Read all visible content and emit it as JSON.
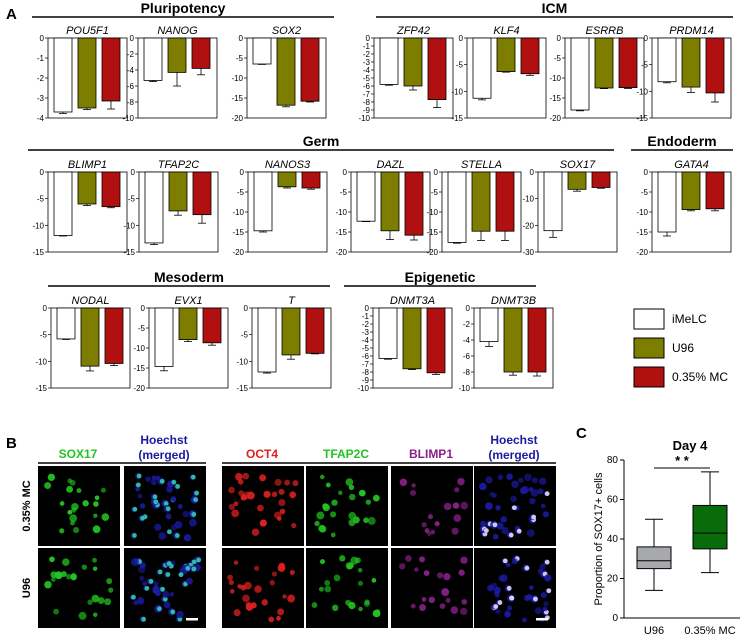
{
  "panels": {
    "a": "A",
    "b": "B",
    "c": "C"
  },
  "groups": [
    {
      "title": "Pluripotency"
    },
    {
      "title": "ICM"
    },
    {
      "title": "Germ"
    },
    {
      "title": "Endoderm"
    },
    {
      "title": "Mesoderm"
    },
    {
      "title": "Epigenetic"
    }
  ],
  "chart_data": [
    {
      "type": "bar",
      "title": "POU5F1",
      "categories": [
        "iMeLC",
        "U96",
        "0.35% MC"
      ],
      "values": [
        -3.7,
        -3.5,
        -3.15
      ],
      "errors": [
        0.07,
        0.08,
        0.4
      ],
      "ylim": [
        -4,
        0
      ],
      "yticks": [
        "0",
        "-1",
        "-2",
        "-3",
        "-4"
      ]
    },
    {
      "type": "bar",
      "title": "NANOG",
      "categories": [
        "iMeLC",
        "U96",
        "0.35% MC"
      ],
      "values": [
        -5.3,
        -4.3,
        -3.8
      ],
      "errors": [
        0.15,
        1.7,
        0.8
      ],
      "ylim": [
        -10,
        0
      ],
      "yticks": [
        "0",
        "-2",
        "-4",
        "-6",
        "-8",
        "-10"
      ]
    },
    {
      "type": "bar",
      "title": "SOX2",
      "categories": [
        "iMeLC",
        "U96",
        "0.35% MC"
      ],
      "values": [
        -6.5,
        -16.8,
        -15.8
      ],
      "errors": [
        0.1,
        0.4,
        0.2
      ],
      "ylim": [
        -20,
        0
      ],
      "yticks": [
        "0",
        "-5",
        "-10",
        "-15",
        "-20"
      ]
    },
    {
      "type": "bar",
      "title": "ZFP42",
      "categories": [
        "iMeLC",
        "U96",
        "0.35% MC"
      ],
      "values": [
        -5.8,
        -6.0,
        -7.7
      ],
      "errors": [
        0.1,
        0.5,
        1.0
      ],
      "ylim": [
        -10,
        0
      ],
      "yticks": [
        "0",
        "-1",
        "-2",
        "-3",
        "-4",
        "-5",
        "-6",
        "-7",
        "-8",
        "-9",
        "-10"
      ]
    },
    {
      "type": "bar",
      "title": "KLF4",
      "categories": [
        "iMeLC",
        "U96",
        "0.35% MC"
      ],
      "values": [
        -11.3,
        -6.3,
        -6.7
      ],
      "errors": [
        0.3,
        0.1,
        0.3
      ],
      "ylim": [
        -15,
        0
      ],
      "yticks": [
        "0",
        "-5",
        "-10",
        "-15"
      ]
    },
    {
      "type": "bar",
      "title": "ESRRB",
      "categories": [
        "iMeLC",
        "U96",
        "0.35% MC"
      ],
      "values": [
        -18.0,
        -12.5,
        -12.4
      ],
      "errors": [
        0.2,
        0.15,
        0.2
      ],
      "ylim": [
        -20,
        0
      ],
      "yticks": [
        "0",
        "-5",
        "-10",
        "-15",
        "-20"
      ]
    },
    {
      "type": "bar",
      "title": "PRDM14",
      "categories": [
        "iMeLC",
        "U96",
        "0.35% MC"
      ],
      "values": [
        -8.2,
        -9.2,
        -10.3
      ],
      "errors": [
        0.2,
        1.0,
        1.7
      ],
      "ylim": [
        -15,
        0
      ],
      "yticks": [
        "0",
        "-5",
        "-10",
        "-15"
      ]
    },
    {
      "type": "bar",
      "title": "BLIMP1",
      "categories": [
        "iMeLC",
        "U96",
        "0.35% MC"
      ],
      "values": [
        -11.9,
        -6.0,
        -6.5
      ],
      "errors": [
        0.1,
        0.3,
        0.2
      ],
      "ylim": [
        -15,
        0
      ],
      "yticks": [
        "0",
        "-5",
        "-10",
        "-15"
      ]
    },
    {
      "type": "bar",
      "title": "TFAP2C",
      "categories": [
        "iMeLC",
        "U96",
        "0.35% MC"
      ],
      "values": [
        -13.3,
        -7.3,
        -8.0
      ],
      "errors": [
        0.3,
        0.8,
        1.6
      ],
      "ylim": [
        -15,
        0
      ],
      "yticks": [
        "0",
        "-5",
        "-10",
        "-15"
      ]
    },
    {
      "type": "bar",
      "title": "NANOS3",
      "categories": [
        "iMeLC",
        "U96",
        "0.35% MC"
      ],
      "values": [
        -14.7,
        -3.7,
        -4.0
      ],
      "errors": [
        0.3,
        0.3,
        0.3
      ],
      "ylim": [
        -20,
        0
      ],
      "yticks": [
        "0",
        "-5",
        "-10",
        "-15",
        "-20"
      ]
    },
    {
      "type": "bar",
      "title": "DAZL",
      "categories": [
        "iMeLC",
        "U96",
        "0.35% MC"
      ],
      "values": [
        -12.3,
        -14.7,
        -15.8
      ],
      "errors": [
        0.1,
        2.2,
        1.2
      ],
      "ylim": [
        -20,
        0
      ],
      "yticks": [
        "0",
        "-5",
        "-10",
        "-15",
        "-20"
      ]
    },
    {
      "type": "bar",
      "title": "STELLA",
      "categories": [
        "iMeLC",
        "U96",
        "0.35% MC"
      ],
      "values": [
        -17.6,
        -14.8,
        -14.8
      ],
      "errors": [
        0.2,
        2.3,
        2.3
      ],
      "ylim": [
        -20,
        0
      ],
      "yticks": [
        "0",
        "-5",
        "-10",
        "-15",
        "-20"
      ]
    },
    {
      "type": "bar",
      "title": "SOX17",
      "categories": [
        "iMeLC",
        "U96",
        "0.35% MC"
      ],
      "values": [
        -22.0,
        -6.5,
        -5.8
      ],
      "errors": [
        2.5,
        0.7,
        0.3
      ],
      "ylim": [
        -30,
        0
      ],
      "yticks": [
        "0",
        "-10",
        "-20",
        "-30"
      ]
    },
    {
      "type": "bar",
      "title": "GATA4",
      "categories": [
        "iMeLC",
        "U96",
        "0.35% MC"
      ],
      "values": [
        -15.0,
        -9.4,
        -9.2
      ],
      "errors": [
        1.0,
        0.3,
        0.5
      ],
      "ylim": [
        -20,
        0
      ],
      "yticks": [
        "0",
        "-5",
        "-10",
        "-15",
        "-20"
      ]
    },
    {
      "type": "bar",
      "title": "NODAL",
      "categories": [
        "iMeLC",
        "U96",
        "0.35% MC"
      ],
      "values": [
        -5.8,
        -10.9,
        -10.4
      ],
      "errors": [
        0.1,
        0.9,
        0.4
      ],
      "ylim": [
        -15,
        0
      ],
      "yticks": [
        "0",
        "-5",
        "-10",
        "-15"
      ]
    },
    {
      "type": "bar",
      "title": "EVX1",
      "categories": [
        "iMeLC",
        "U96",
        "0.35% MC"
      ],
      "values": [
        -14.6,
        -7.9,
        -8.7
      ],
      "errors": [
        1.1,
        0.5,
        0.6
      ],
      "ylim": [
        -20,
        0
      ],
      "yticks": [
        "0",
        "-5",
        "-10",
        "-15",
        "-20"
      ]
    },
    {
      "type": "bar",
      "title": "T",
      "categories": [
        "iMeLC",
        "U96",
        "0.35% MC"
      ],
      "values": [
        -12.0,
        -8.8,
        -8.5
      ],
      "errors": [
        0.2,
        0.8,
        0.1
      ],
      "ylim": [
        -15,
        0
      ],
      "yticks": [
        "0",
        "-5",
        "-10",
        "-15"
      ]
    },
    {
      "type": "bar",
      "title": "DNMT3A",
      "categories": [
        "iMeLC",
        "U96",
        "0.35% MC"
      ],
      "values": [
        -6.3,
        -7.6,
        -8.1
      ],
      "errors": [
        0.1,
        0.1,
        0.2
      ],
      "ylim": [
        -10,
        0
      ],
      "yticks": [
        "0",
        "-1",
        "-2",
        "-3",
        "-4",
        "-5",
        "-6",
        "-7",
        "-8",
        "-9",
        "-10"
      ]
    },
    {
      "type": "bar",
      "title": "DNMT3B",
      "categories": [
        "iMeLC",
        "U96",
        "0.35% MC"
      ],
      "values": [
        -4.2,
        -8.0,
        -8.0
      ],
      "errors": [
        0.6,
        0.4,
        0.5
      ],
      "ylim": [
        -10,
        0
      ],
      "yticks": [
        "0",
        "-2",
        "-4",
        "-6",
        "-8",
        "-10"
      ]
    },
    {
      "type": "box",
      "title": "Day 4",
      "ylabel": "Proportion of SOX17+ cells",
      "categories": [
        "U96",
        "0.35% MC"
      ],
      "ylim": [
        0,
        80
      ],
      "boxes": [
        {
          "name": "U96",
          "min": 14,
          "q1": 25,
          "median": 29,
          "q3": 36,
          "max": 50,
          "color": "#a7a9ac"
        },
        {
          "name": "0.35% MC",
          "min": 23,
          "q1": 35,
          "median": 43,
          "q3": 57,
          "max": 74,
          "color": "#0a6b0a"
        }
      ],
      "significance": "* *"
    }
  ],
  "legend": [
    {
      "label": "iMeLC",
      "color": "#ffffff"
    },
    {
      "label": "U96",
      "color": "#7d7d00"
    },
    {
      "label": "0.35% MC",
      "color": "#b01010"
    }
  ],
  "colors": {
    "iMeLC": "#ffffff",
    "U96": "#7d7d00",
    "MC": "#b01010"
  },
  "microscopy": {
    "left_channels": [
      "SOX17",
      "Hoechst (merged)"
    ],
    "right_channels": [
      "OCT4",
      "TFAP2C",
      "BLIMP1",
      "Hoechst (merged)"
    ],
    "rows": [
      "0.35% MC",
      "U96"
    ],
    "channel_colors": {
      "SOX17": "#22c422",
      "Hoechst": "#1a1aa0",
      "OCT4": "#e02020",
      "TFAP2C": "#22c422",
      "BLIMP1": "#8a208a"
    }
  }
}
